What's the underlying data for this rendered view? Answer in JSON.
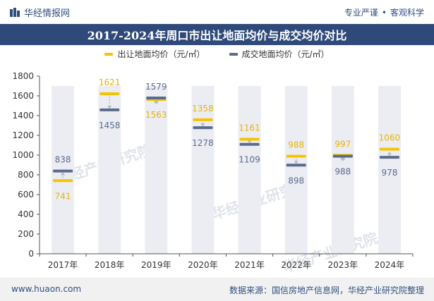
{
  "header": {
    "brand": "华经情报网",
    "tags": [
      "专业严谨",
      "客观科学"
    ]
  },
  "chart_data": {
    "type": "bar",
    "title": "2017-2024年周口市出让地面均价与成交均价对比",
    "categories": [
      "2017年",
      "2018年",
      "2019年",
      "2020年",
      "2021年",
      "2022年",
      "2023年",
      "2024年"
    ],
    "series": [
      {
        "name": "出让地面均价（元/㎡）",
        "values": [
          741,
          1621,
          1563,
          1358,
          1161,
          988,
          997,
          1060
        ],
        "color": "#f5c400"
      },
      {
        "name": "成交地面均价（元/㎡）",
        "values": [
          838,
          1458,
          1579,
          1278,
          1109,
          898,
          988,
          978
        ],
        "color": "#5b6b8c"
      }
    ],
    "y_ticks": [
      "0",
      "200",
      "400",
      "600",
      "800",
      "1000",
      "1200",
      "1400",
      "1600",
      "1800"
    ],
    "ylim": [
      0,
      1800
    ],
    "xlabel": "",
    "ylabel": "",
    "legend_position": "top-center",
    "watermark": "华经产业研究院"
  },
  "footer": {
    "url": "www.huaon.com",
    "source": "数据来源：国信房地产信息网，华经产业研究院整理"
  },
  "colors": {
    "title_bg": "#2f4a7a",
    "band": "#ebedf3",
    "arrow": "#b7bcc8",
    "axis": "#555555"
  }
}
